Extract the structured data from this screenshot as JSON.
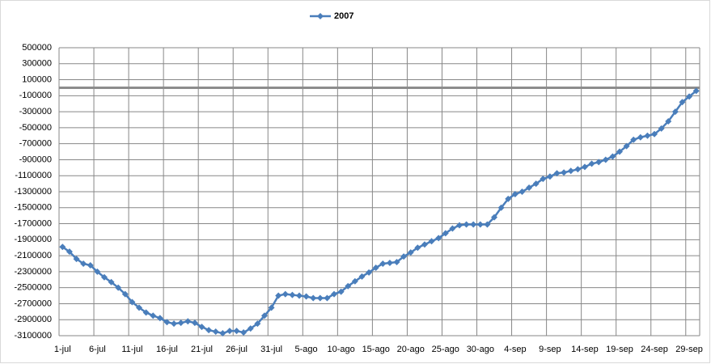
{
  "chart_data": {
    "type": "line",
    "categories": [
      "1-jul",
      null,
      null,
      null,
      null,
      "6-jul",
      null,
      null,
      null,
      null,
      "11-jul",
      null,
      null,
      null,
      null,
      "16-jul",
      null,
      null,
      null,
      null,
      "21-jul",
      null,
      null,
      null,
      null,
      "26-jul",
      null,
      null,
      null,
      null,
      "31-jul",
      null,
      null,
      null,
      null,
      "5-ago",
      null,
      null,
      null,
      null,
      "10-ago",
      null,
      null,
      null,
      null,
      "15-ago",
      null,
      null,
      null,
      null,
      "20-ago",
      null,
      null,
      null,
      null,
      "25-ago",
      null,
      null,
      null,
      null,
      "30-ago",
      null,
      null,
      null,
      null,
      "4-sep",
      null,
      null,
      null,
      null,
      "9-sep",
      null,
      null,
      null,
      null,
      "14-sep",
      null,
      null,
      null,
      null,
      "19-sep",
      null,
      null,
      null,
      null,
      "24-sep",
      null,
      null,
      null,
      null,
      "29-sep",
      null
    ],
    "series": [
      {
        "name": "2007",
        "color": "#4a7ebb",
        "values": [
          -1990000,
          -2050000,
          -2140000,
          -2200000,
          -2220000,
          -2300000,
          -2370000,
          -2430000,
          -2500000,
          -2580000,
          -2680000,
          -2750000,
          -2810000,
          -2850000,
          -2880000,
          -2930000,
          -2950000,
          -2940000,
          -2920000,
          -2940000,
          -2990000,
          -3030000,
          -3050000,
          -3070000,
          -3040000,
          -3040000,
          -3060000,
          -3010000,
          -2950000,
          -2850000,
          -2750000,
          -2600000,
          -2580000,
          -2590000,
          -2600000,
          -2610000,
          -2630000,
          -2630000,
          -2630000,
          -2580000,
          -2550000,
          -2480000,
          -2420000,
          -2360000,
          -2310000,
          -2250000,
          -2200000,
          -2190000,
          -2180000,
          -2110000,
          -2060000,
          -2000000,
          -1960000,
          -1920000,
          -1880000,
          -1820000,
          -1760000,
          -1720000,
          -1710000,
          -1710000,
          -1710000,
          -1710000,
          -1620000,
          -1500000,
          -1390000,
          -1330000,
          -1300000,
          -1250000,
          -1200000,
          -1140000,
          -1110000,
          -1070000,
          -1060000,
          -1040000,
          -1020000,
          -990000,
          -950000,
          -930000,
          -900000,
          -860000,
          -800000,
          -730000,
          -650000,
          -620000,
          -600000,
          -580000,
          -510000,
          -420000,
          -300000,
          -180000,
          -110000,
          -40000
        ]
      }
    ],
    "ylim": [
      -3100000,
      500000
    ],
    "yticks": [
      500000,
      300000,
      100000,
      -100000,
      -300000,
      -500000,
      -700000,
      -900000,
      -1100000,
      -1300000,
      -1500000,
      -1700000,
      -1900000,
      -2100000,
      -2300000,
      -2500000,
      -2700000,
      -2900000,
      -3100000
    ],
    "grid": true,
    "legend": "top"
  }
}
